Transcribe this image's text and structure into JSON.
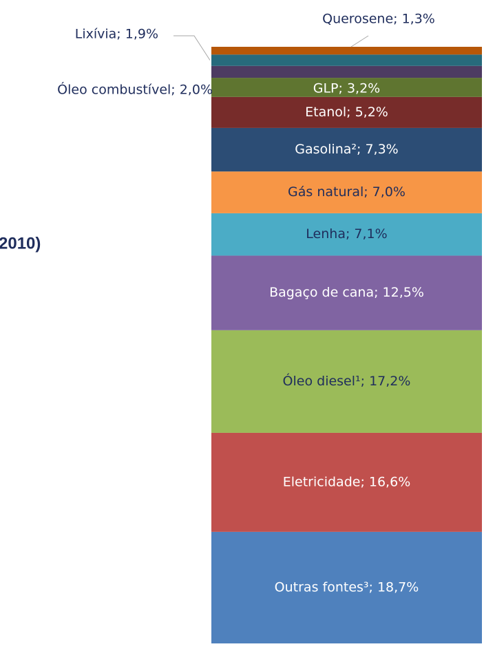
{
  "chart_data": {
    "type": "stacked_bar",
    "title": "2010)",
    "ylim": [
      0,
      100
    ],
    "series": [
      {
        "name": "Outras fontes³",
        "color": "#4f81bd",
        "label_color": "#ffffff",
        "values": [
          18.7
        ],
        "value_labels": [
          "Outras fontes³; 18,7%"
        ]
      },
      {
        "name": "Eletricidade",
        "color": "#c0504d",
        "label_color": "#ffffff",
        "values": [
          16.6
        ],
        "value_labels": [
          "Eletricidade; 16,6%"
        ]
      },
      {
        "name": "Óleo diesel¹",
        "color": "#9bbb59",
        "label_color": "#1f2d5c",
        "values": [
          17.2
        ],
        "value_labels": [
          "Óleo diesel¹; 17,2%"
        ]
      },
      {
        "name": "Bagaço de cana",
        "color": "#8064a2",
        "label_color": "#ffffff",
        "values": [
          12.5
        ],
        "value_labels": [
          "Bagaço de cana; 12,5%"
        ]
      },
      {
        "name": "Lenha",
        "color": "#4bacc6",
        "label_color": "#1f2d5c",
        "values": [
          7.1
        ],
        "value_labels": [
          "Lenha; 7,1%"
        ]
      },
      {
        "name": "Gás natural",
        "color": "#f79646",
        "label_color": "#1f2d5c",
        "values": [
          7.0
        ],
        "value_labels": [
          "Gás natural; 7,0%"
        ]
      },
      {
        "name": "Gasolina²",
        "color": "#2c4d75",
        "label_color": "#ffffff",
        "values": [
          7.3
        ],
        "value_labels": [
          "Gasolina²; 7,3%"
        ]
      },
      {
        "name": "Etanol",
        "color": "#772c2a",
        "label_color": "#ffffff",
        "values": [
          5.2
        ],
        "value_labels": [
          "Etanol; 5,2%"
        ]
      },
      {
        "name": "GLP",
        "color": "#5f7530",
        "label_color": "#ffffff",
        "values": [
          3.2
        ],
        "value_labels": [
          "GLP; 3,2%"
        ]
      },
      {
        "name": "Óleo combustível",
        "color": "#4d3b62",
        "label_color": "#1f2d5c",
        "values": [
          2.0
        ],
        "value_labels": [
          "Óleo combustível; 2,0%"
        ]
      },
      {
        "name": "Lixívia",
        "color": "#276a7c",
        "label_color": "#1f2d5c",
        "values": [
          1.9
        ],
        "value_labels": [
          "Lixívia; 1,9%"
        ]
      },
      {
        "name": "Querosene",
        "color": "#b65708",
        "label_color": "#1f2d5c",
        "values": [
          1.3
        ],
        "value_labels": [
          "Querosene; 1,3%"
        ]
      }
    ]
  }
}
